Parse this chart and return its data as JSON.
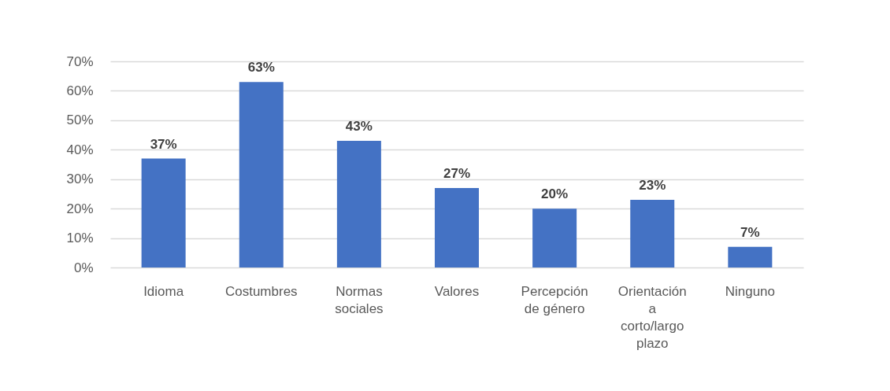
{
  "chart_data": {
    "type": "bar",
    "categories": [
      "Idioma",
      "Costumbres",
      "Normas sociales",
      "Valores",
      "Percepción de género",
      "Orientación a corto/largo plazo",
      "Ninguno"
    ],
    "values": [
      37,
      63,
      43,
      27,
      20,
      23,
      7
    ],
    "value_labels": [
      "37%",
      "63%",
      "43%",
      "27%",
      "20%",
      "23%",
      "7%"
    ],
    "color": "#4472c4",
    "ylim": [
      0,
      70
    ],
    "yticks": [
      {
        "value": 0,
        "label": "0%"
      },
      {
        "value": 10,
        "label": "10%"
      },
      {
        "value": 20,
        "label": "20%"
      },
      {
        "value": 30,
        "label": "30%"
      },
      {
        "value": 40,
        "label": "40%"
      },
      {
        "value": 50,
        "label": "50%"
      },
      {
        "value": 60,
        "label": "60%"
      },
      {
        "value": 70,
        "label": "70%"
      }
    ],
    "grid": "y"
  }
}
